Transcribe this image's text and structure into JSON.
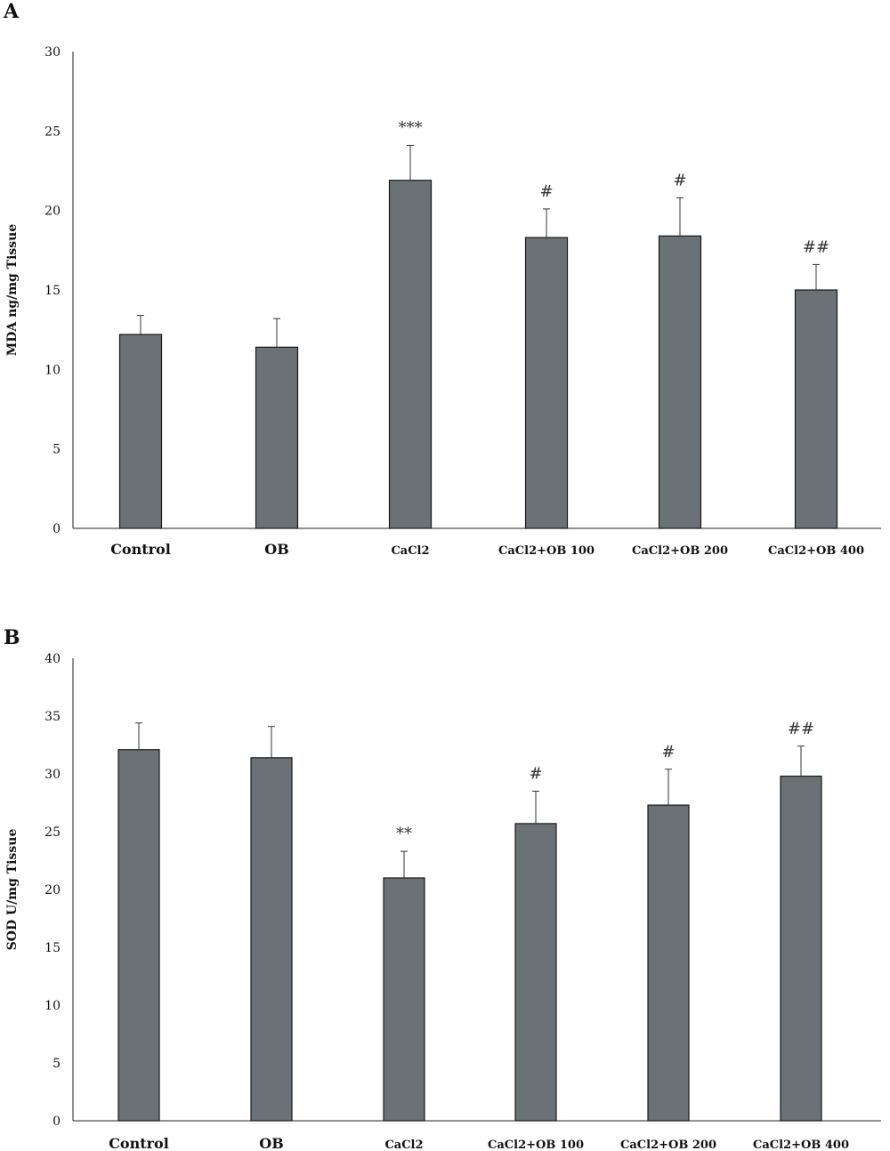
{
  "chart_data": [
    {
      "panel": "A",
      "type": "bar",
      "ylabel": "MDA ng/mg Tissue",
      "xlabel": "",
      "ylim": [
        0,
        30
      ],
      "yticks": [
        0,
        5,
        10,
        15,
        20,
        25,
        30
      ],
      "categories": [
        "Control",
        "OB",
        "CaCl2",
        "CaCl2+OB 100",
        "CaCl2+OB 200",
        "CaCl2+OB 400"
      ],
      "values": [
        12.2,
        11.4,
        21.9,
        18.3,
        18.4,
        15.0
      ],
      "errors": [
        1.2,
        1.8,
        2.2,
        1.8,
        2.4,
        1.6
      ],
      "annotations": [
        "",
        "",
        "***",
        "#",
        "#",
        "##"
      ],
      "bar_color": "#6b7174"
    },
    {
      "panel": "B",
      "type": "bar",
      "ylabel": "SOD U/mg Tissue",
      "xlabel": "",
      "ylim": [
        0,
        40
      ],
      "yticks": [
        0,
        5,
        10,
        15,
        20,
        25,
        30,
        35,
        40
      ],
      "categories": [
        "Control",
        "OB",
        "CaCl2",
        "CaCl2+OB 100",
        "CaCl2+OB 200",
        "CaCl2+OB 400"
      ],
      "values": [
        32.1,
        31.4,
        21.0,
        25.7,
        27.3,
        29.8
      ],
      "errors": [
        2.3,
        2.7,
        2.3,
        2.8,
        3.1,
        2.6
      ],
      "annotations": [
        "",
        "",
        "**",
        "#",
        "#",
        "##"
      ],
      "bar_color": "#6b7174"
    }
  ]
}
